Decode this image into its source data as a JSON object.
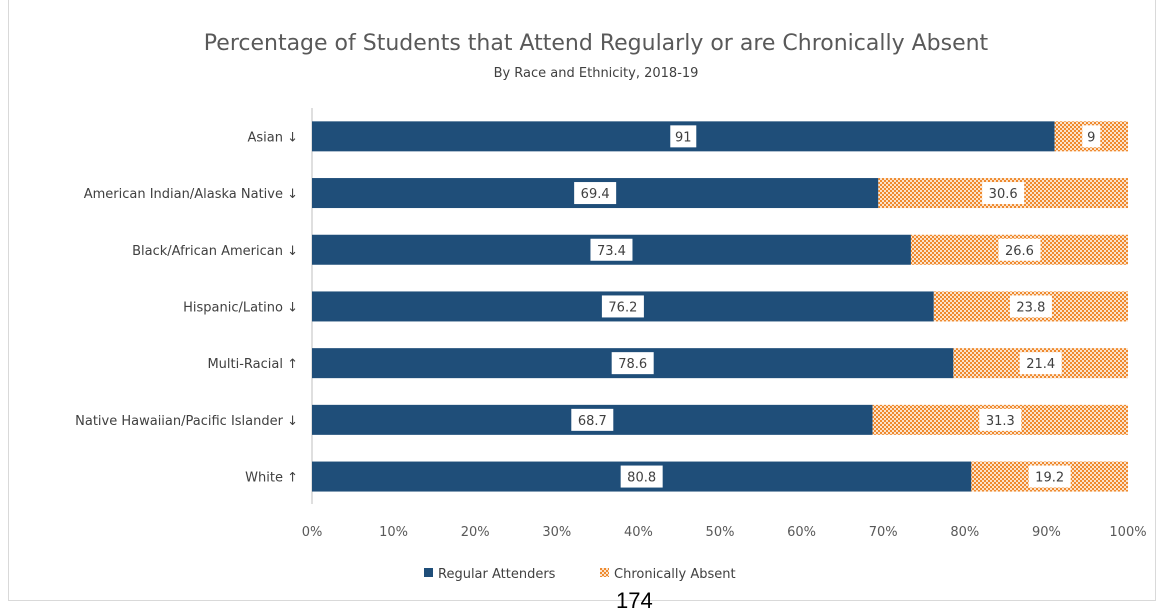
{
  "page_number": "174",
  "chart_data": {
    "type": "bar",
    "orientation": "horizontal",
    "stacked": true,
    "title": "Percentage of Students that Attend Regularly or are Chronically Absent",
    "subtitle": "By Race and Ethnicity, 2018-19",
    "categories": [
      "Asian ↓",
      "American Indian/Alaska Native ↓",
      "Black/African American ↓",
      "Hispanic/Latino ↓",
      "Multi-Racial ↑",
      "Native Hawaiian/Pacific Islander ↓",
      "White ↑"
    ],
    "series": [
      {
        "name": "Regular Attenders",
        "values": [
          91,
          69.4,
          73.4,
          76.2,
          78.6,
          68.7,
          80.8
        ],
        "color": "#1f4e79"
      },
      {
        "name": "Chronically Absent",
        "values": [
          9,
          30.6,
          26.6,
          23.8,
          21.4,
          31.3,
          19.2
        ],
        "color": "#f4a460"
      }
    ],
    "xlim": [
      0,
      100
    ],
    "xticks": [
      "0%",
      "10%",
      "20%",
      "30%",
      "40%",
      "50%",
      "60%",
      "70%",
      "80%",
      "90%",
      "100%"
    ],
    "legend_position": "bottom",
    "grid": false
  }
}
